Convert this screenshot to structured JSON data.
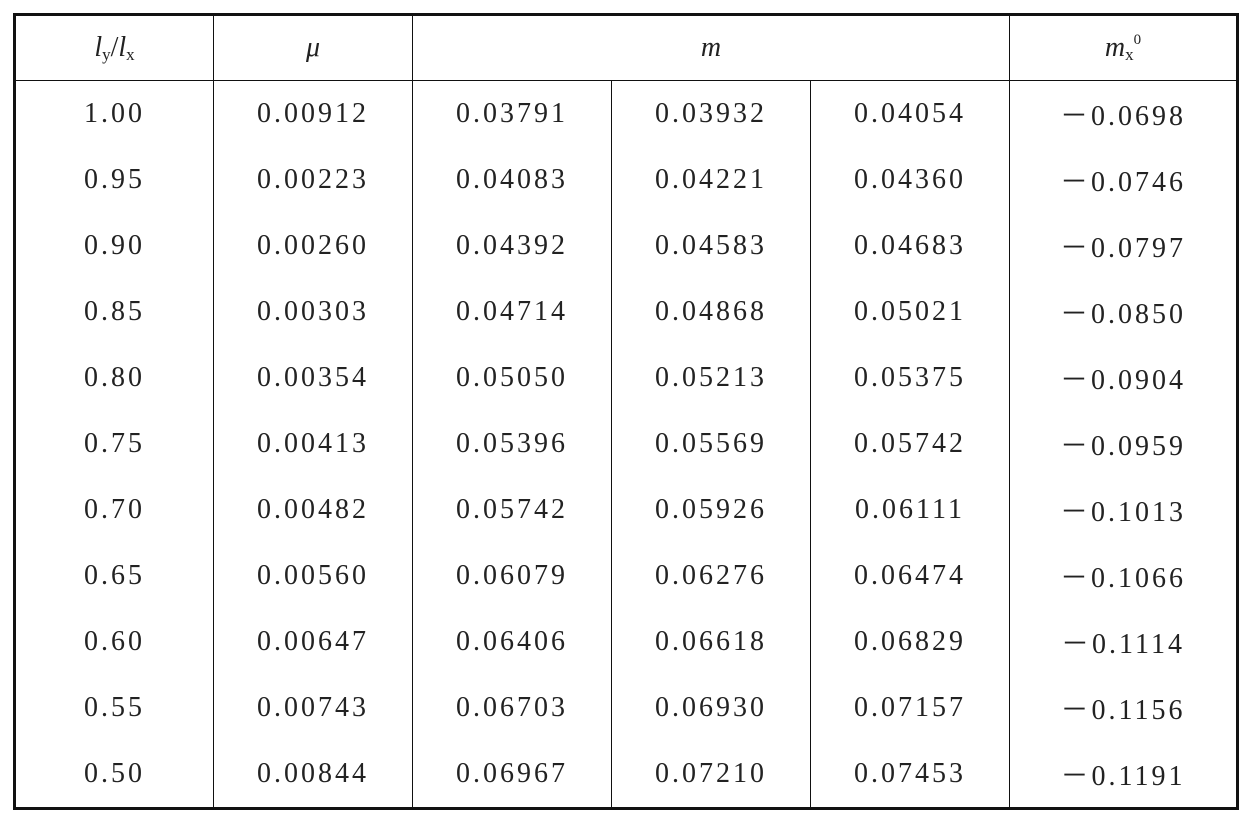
{
  "table": {
    "header": [
      [
        {
          "text": "l",
          "sub": "y"
        },
        {
          "text": "/"
        },
        {
          "text": "l",
          "sub": "x"
        }
      ],
      [
        {
          "text": "μ"
        }
      ],
      [
        {
          "text": "m"
        }
      ],
      [
        {
          "text": "m",
          "sub": "x",
          "sup": "0"
        }
      ]
    ],
    "rows": [
      [
        "1.00",
        "0.00912",
        "0.03791",
        "0.03932",
        "0.04054",
        "－0.0698"
      ],
      [
        "0.95",
        "0.00223",
        "0.04083",
        "0.04221",
        "0.04360",
        "－0.0746"
      ],
      [
        "0.90",
        "0.00260",
        "0.04392",
        "0.04583",
        "0.04683",
        "－0.0797"
      ],
      [
        "0.85",
        "0.00303",
        "0.04714",
        "0.04868",
        "0.05021",
        "－0.0850"
      ],
      [
        "0.80",
        "0.00354",
        "0.05050",
        "0.05213",
        "0.05375",
        "－0.0904"
      ],
      [
        "0.75",
        "0.00413",
        "0.05396",
        "0.05569",
        "0.05742",
        "－0.0959"
      ],
      [
        "0.70",
        "0.00482",
        "0.05742",
        "0.05926",
        "0.06111",
        "－0.1013"
      ],
      [
        "0.65",
        "0.00560",
        "0.06079",
        "0.06276",
        "0.06474",
        "－0.1066"
      ],
      [
        "0.60",
        "0.00647",
        "0.06406",
        "0.06618",
        "0.06829",
        "－0.1114"
      ],
      [
        "0.55",
        "0.00743",
        "0.06703",
        "0.06930",
        "0.07157",
        "－0.1156"
      ],
      [
        "0.50",
        "0.00844",
        "0.06967",
        "0.07210",
        "0.07453",
        "－0.1191"
      ]
    ]
  }
}
